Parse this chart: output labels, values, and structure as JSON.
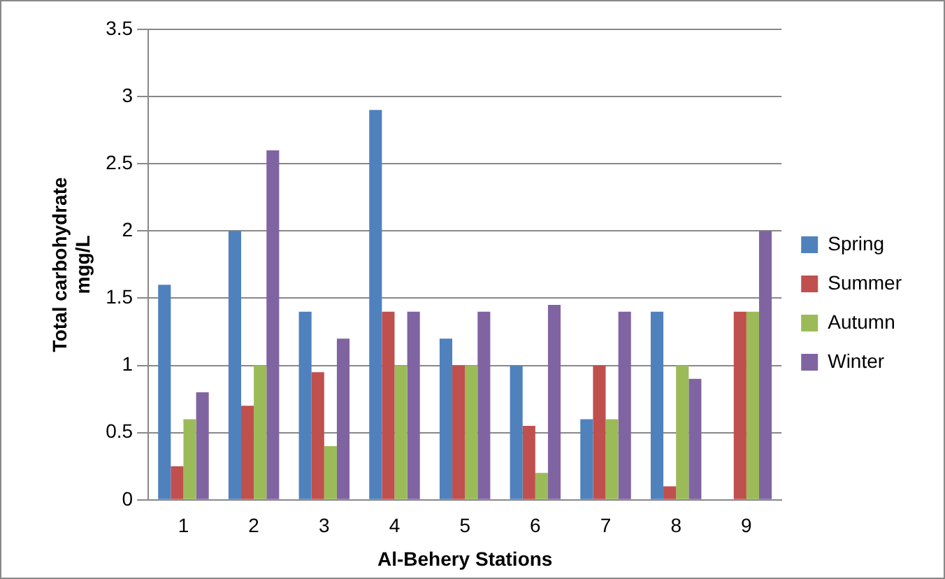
{
  "chart_data": {
    "type": "bar",
    "xlabel": "Al-Behery Stations",
    "ylabel": "Total carbohydrate\nmgg/L",
    "categories": [
      "1",
      "2",
      "3",
      "4",
      "5",
      "6",
      "7",
      "8",
      "9"
    ],
    "series": [
      {
        "name": "Spring",
        "color": "#4f81bd",
        "values": [
          1.6,
          2,
          1.4,
          2.9,
          1.2,
          1,
          0.6,
          1.4,
          null
        ]
      },
      {
        "name": "Summer",
        "color": "#c0504d",
        "values": [
          0.25,
          0.7,
          0.95,
          1.4,
          1,
          0.55,
          1,
          0.1,
          1.4
        ]
      },
      {
        "name": "Autumn",
        "color": "#9bbb59",
        "values": [
          0.6,
          1,
          0.4,
          1,
          1,
          0.2,
          0.6,
          1,
          1.4
        ]
      },
      {
        "name": "Winter",
        "color": "#8064a2",
        "values": [
          0.8,
          2.6,
          1.2,
          1.4,
          1.4,
          1.45,
          1.4,
          0.9,
          2
        ]
      }
    ],
    "ylim": [
      0,
      3.5
    ],
    "yticks": [
      0,
      0.5,
      1,
      1.5,
      2,
      2.5,
      3,
      3.5
    ],
    "grid": "y",
    "legend": "right"
  }
}
